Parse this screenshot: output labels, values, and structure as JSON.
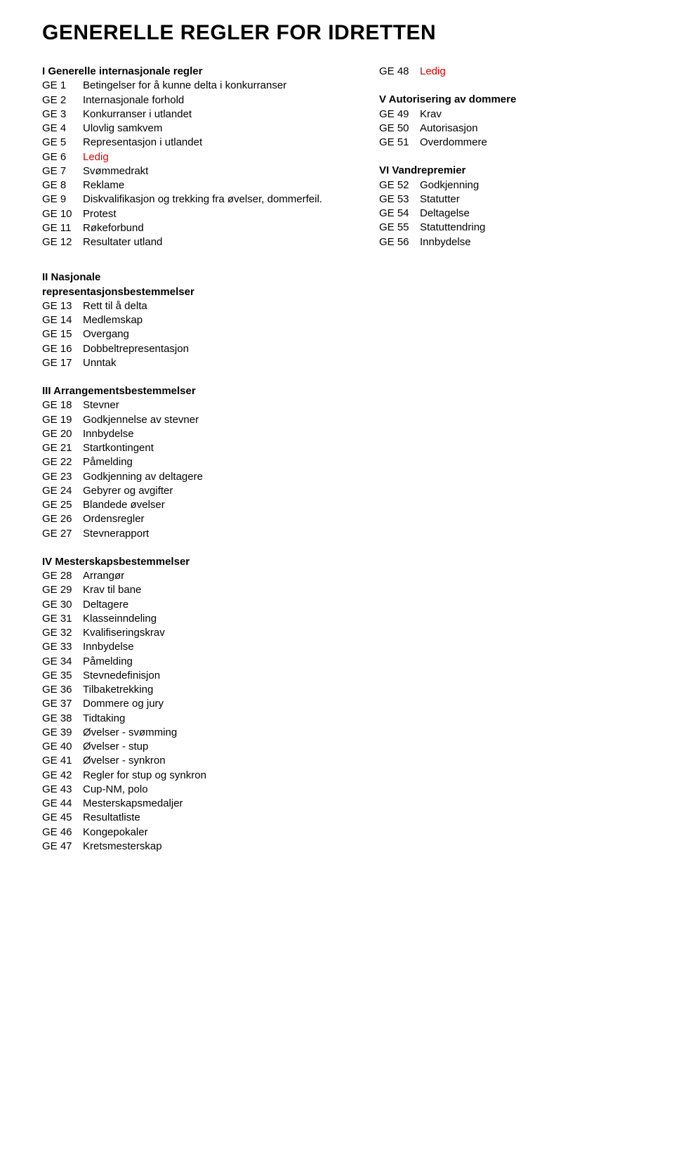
{
  "title": "GENERELLE REGLER FOR IDRETTEN",
  "colors": {
    "text": "#000000",
    "ledig": "#d60000",
    "background": "#ffffff"
  },
  "left": {
    "heading": "I Generelle internasjonale regler",
    "items": [
      {
        "code": "GE 1",
        "label": "Betingelser for å kunne delta i konkurranser"
      },
      {
        "code": "GE 2",
        "label": "Internasjonale forhold"
      },
      {
        "code": "GE 3",
        "label": "Konkurranser i utlandet"
      },
      {
        "code": "GE 4",
        "label": "Ulovlig samkvem"
      },
      {
        "code": "GE 5",
        "label": "Representasjon i utlandet"
      },
      {
        "code": "GE 6",
        "label": "Ledig",
        "ledig": true
      },
      {
        "code": "GE 7",
        "label": "Svømmedrakt"
      },
      {
        "code": "GE 8",
        "label": "Reklame"
      },
      {
        "code": "GE 9",
        "label": "Diskvalifikasjon og trekking fra øvelser, dommerfeil."
      },
      {
        "code": "GE 10",
        "label": "Protest"
      },
      {
        "code": "GE 11",
        "label": "Røkeforbund"
      },
      {
        "code": "GE 12",
        "label": "Resultater utland"
      }
    ]
  },
  "right": {
    "top": {
      "code": "GE 48",
      "label": "Ledig",
      "ledig": true
    },
    "sectionV": {
      "heading": "V Autorisering av dommere",
      "items": [
        {
          "code": "GE 49",
          "label": "Krav"
        },
        {
          "code": "GE 50",
          "label": "Autorisasjon"
        },
        {
          "code": "GE 51",
          "label": "Overdommere"
        }
      ]
    },
    "sectionVI": {
      "heading": "VI Vandrepremier",
      "items": [
        {
          "code": "GE 52",
          "label": "Godkjenning"
        },
        {
          "code": "GE 53",
          "label": "Statutter"
        },
        {
          "code": "GE 54",
          "label": "Deltagelse"
        },
        {
          "code": "GE 55",
          "label": "Statuttendring"
        },
        {
          "code": "GE 56",
          "label": "Innbydelse"
        }
      ]
    }
  },
  "lower": [
    {
      "heading_lines": [
        "II Nasjonale",
        "representasjonsbestemmelser"
      ],
      "items": [
        {
          "code": "GE 13",
          "label": "Rett til å delta"
        },
        {
          "code": "GE 14",
          "label": "Medlemskap"
        },
        {
          "code": "GE 15",
          "label": "Overgang"
        },
        {
          "code": "GE 16",
          "label": "Dobbeltrepresentasjon"
        },
        {
          "code": "GE 17",
          "label": "Unntak"
        }
      ]
    },
    {
      "heading_lines": [
        "III Arrangementsbestemmelser"
      ],
      "items": [
        {
          "code": "GE 18",
          "label": "Stevner"
        },
        {
          "code": "GE 19",
          "label": "Godkjennelse av stevner"
        },
        {
          "code": "GE 20",
          "label": "Innbydelse"
        },
        {
          "code": "GE 21",
          "label": "Startkontingent"
        },
        {
          "code": "GE 22",
          "label": "Påmelding"
        },
        {
          "code": "GE 23",
          "label": "Godkjenning av deltagere"
        },
        {
          "code": "GE 24",
          "label": "Gebyrer og avgifter"
        },
        {
          "code": "GE 25",
          "label": "Blandede øvelser"
        },
        {
          "code": "GE 26",
          "label": "Ordensregler"
        },
        {
          "code": "GE 27",
          "label": "Stevnerapport"
        }
      ]
    },
    {
      "heading_lines": [
        "IV Mesterskapsbestemmelser"
      ],
      "items": [
        {
          "code": "GE 28",
          "label": "Arrangør"
        },
        {
          "code": "GE 29",
          "label": "Krav til bane"
        },
        {
          "code": "GE 30",
          "label": "Deltagere"
        },
        {
          "code": "GE 31",
          "label": "Klasseinndeling"
        },
        {
          "code": "GE 32",
          "label": "Kvalifiseringskrav"
        },
        {
          "code": "GE 33",
          "label": "Innbydelse"
        },
        {
          "code": "GE 34",
          "label": "Påmelding"
        },
        {
          "code": "GE 35",
          "label": "Stevnedefinisjon"
        },
        {
          "code": "GE 36",
          "label": "Tilbaketrekking"
        },
        {
          "code": "GE 37",
          "label": "Dommere og jury"
        },
        {
          "code": "GE 38",
          "label": "Tidtaking"
        },
        {
          "code": "GE 39",
          "label": "Øvelser - svømming"
        },
        {
          "code": "GE 40",
          "label": "Øvelser - stup"
        },
        {
          "code": "GE 41",
          "label": "Øvelser - synkron"
        },
        {
          "code": "GE 42",
          "label": "Regler for stup og synkron"
        },
        {
          "code": "GE 43",
          "label": "Cup-NM, polo"
        },
        {
          "code": "GE 44",
          "label": "Mesterskapsmedaljer"
        },
        {
          "code": "GE 45",
          "label": "Resultatliste"
        },
        {
          "code": "GE 46",
          "label": "Kongepokaler"
        },
        {
          "code": "GE 47",
          "label": "Kretsmesterskap"
        }
      ]
    }
  ]
}
